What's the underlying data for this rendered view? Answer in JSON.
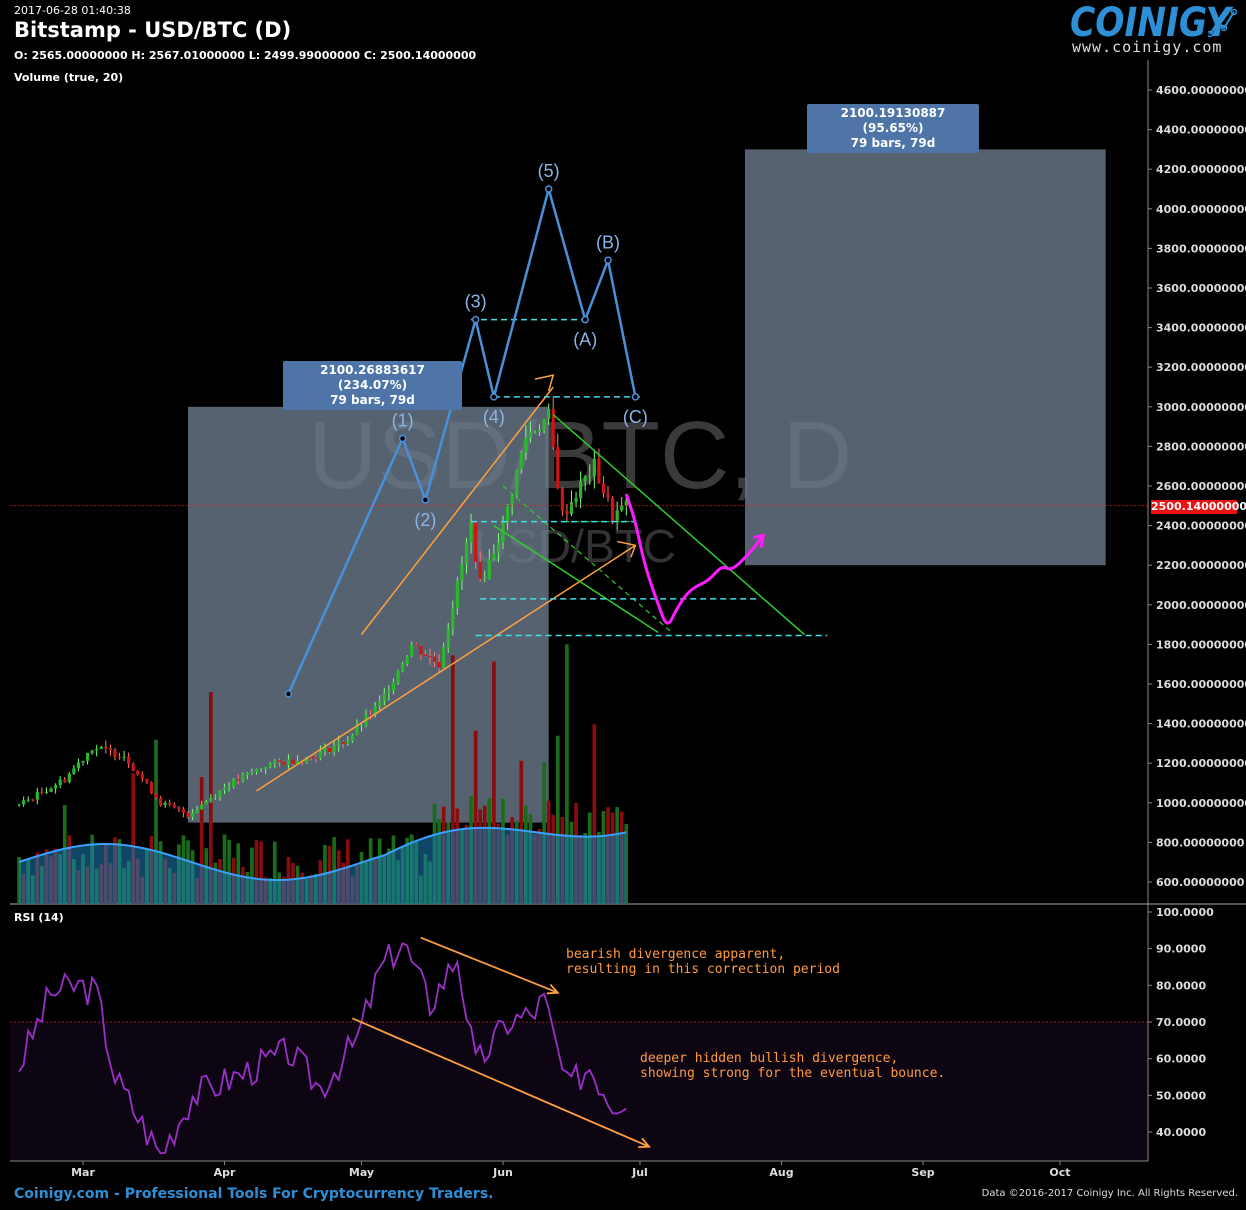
{
  "header": {
    "timestamp": "2017-06-28 01:40:38",
    "title": "Bitstamp - USD/BTC (D)",
    "ohlc": "O: 2565.00000000 H: 2567.01000000 L: 2499.99000000 C: 2500.14000000",
    "volume_label": "Volume (true, 20)"
  },
  "brand": {
    "name": "COINIGY",
    "url": "www.coinigy.com",
    "accent": "#2e8fd6"
  },
  "watermark": {
    "main": "USD/BTC, D",
    "sub": "USD/BTC"
  },
  "rsi_label": "RSI (14)",
  "footer": {
    "left": "Coinigy.com - Professional Tools For Cryptocurrency Traders.",
    "right": "Data ©2016-2017 Coinigy Inc. All Rights Reserved."
  },
  "annotations": {
    "measure_1": {
      "line1": "2100.26883617 (234.07%)",
      "line2": "79 bars, 79d"
    },
    "measure_2": {
      "line1": "2100.19130887 (95.65%)",
      "line2": "79 bars, 79d"
    },
    "note_bearish": "bearish divergence apparent,\nresulting in this correction period",
    "note_bullish": "deeper hidden bullish divergence,\nshowing strong for the eventual bounce.",
    "wave_labels": [
      "(1)",
      "(2)",
      "(3)",
      "(4)",
      "(5)",
      "(A)",
      "(B)",
      "(C)"
    ]
  },
  "chart_data": {
    "type": "candlestick",
    "price_axis_ticks": [
      "4600.00000000",
      "4400.00000000",
      "4200.00000000",
      "4000.00000000",
      "3800.00000000",
      "3600.00000000",
      "3400.00000000",
      "3200.00000000",
      "3000.00000000",
      "2800.00000000",
      "2600.00000000",
      "2400.00000000",
      "2200.00000000",
      "2000.00000000",
      "1800.00000000",
      "1600.00000000",
      "1400.00000000",
      "1200.00000000",
      "1000.00000000",
      "800.00000000",
      "600.00000000"
    ],
    "rsi_axis_ticks": [
      "100.0000",
      "90.0000",
      "80.0000",
      "70.0000",
      "60.0000",
      "50.0000",
      "40.0000"
    ],
    "time_axis_ticks": [
      "Mar",
      "Apr",
      "May",
      "Jun",
      "Jul",
      "Aug",
      "Sep",
      "Oct"
    ],
    "last_price_label": "2500.14000000",
    "last_price": 2500.14,
    "open": 2565.0,
    "high": 2567.01,
    "low": 2499.99,
    "close": 2500.14,
    "rsi_overbought": 70,
    "price_range": [
      500,
      4700
    ],
    "rsi_range": [
      30,
      100
    ],
    "price_keypoints": [
      [
        "2017-02-15",
        990
      ],
      [
        "2017-02-25",
        1120
      ],
      [
        "2017-03-03",
        1280
      ],
      [
        "2017-03-10",
        1240
      ],
      [
        "2017-03-18",
        1000
      ],
      [
        "2017-03-24",
        940
      ],
      [
        "2017-04-01",
        1080
      ],
      [
        "2017-04-10",
        1190
      ],
      [
        "2017-04-20",
        1230
      ],
      [
        "2017-04-28",
        1320
      ],
      [
        "2017-05-05",
        1500
      ],
      [
        "2017-05-12",
        1800
      ],
      [
        "2017-05-18",
        1700
      ],
      [
        "2017-05-25",
        2400
      ],
      [
        "2017-05-27",
        2100
      ],
      [
        "2017-06-01",
        2400
      ],
      [
        "2017-06-06",
        2850
      ],
      [
        "2017-06-11",
        2950
      ],
      [
        "2017-06-14",
        2450
      ],
      [
        "2017-06-18",
        2600
      ],
      [
        "2017-06-21",
        2700
      ],
      [
        "2017-06-25",
        2450
      ],
      [
        "2017-06-28",
        2500
      ]
    ],
    "rsi_keypoints": [
      [
        "2017-02-15",
        58
      ],
      [
        "2017-02-22",
        78
      ],
      [
        "2017-02-28",
        80
      ],
      [
        "2017-03-04",
        78
      ],
      [
        "2017-03-08",
        55
      ],
      [
        "2017-03-15",
        40
      ],
      [
        "2017-03-18",
        34
      ],
      [
        "2017-03-25",
        50
      ],
      [
        "2017-04-05",
        56
      ],
      [
        "2017-04-15",
        62
      ],
      [
        "2017-04-22",
        52
      ],
      [
        "2017-04-30",
        65
      ],
      [
        "2017-05-05",
        84
      ],
      [
        "2017-05-10",
        92
      ],
      [
        "2017-05-16",
        75
      ],
      [
        "2017-05-22",
        88
      ],
      [
        "2017-05-26",
        58
      ],
      [
        "2017-06-02",
        70
      ],
      [
        "2017-06-07",
        72
      ],
      [
        "2017-06-10",
        76
      ],
      [
        "2017-06-15",
        52
      ],
      [
        "2017-06-20",
        58
      ],
      [
        "2017-06-25",
        48
      ],
      [
        "2017-06-28",
        50
      ]
    ],
    "series": [
      {
        "name": "Volume (true, 20)"
      },
      {
        "name": "RSI (14)"
      }
    ],
    "elliott_waves": [
      {
        "label": "(1)",
        "date": "2017-05-10",
        "price": 2840
      },
      {
        "label": "(2)",
        "date": "2017-05-15",
        "price": 2530
      },
      {
        "label": "(3)",
        "date": "2017-05-26",
        "price": 3440
      },
      {
        "label": "(4)",
        "date": "2017-05-30",
        "price": 3050
      },
      {
        "label": "(5)",
        "date": "2017-06-11",
        "price": 4100
      },
      {
        "label": "(A)",
        "date": "2017-06-19",
        "price": 3440
      },
      {
        "label": "(B)",
        "date": "2017-06-24",
        "price": 3740
      },
      {
        "label": "(C)",
        "date": "2017-06-30",
        "price": 3050
      }
    ],
    "colors": {
      "up": "#2bb72b",
      "down": "#d01414",
      "wave": "#4a90d9",
      "channel": "#2ecc2e",
      "support": "#3fe0e8",
      "projection": "#ff1aff",
      "trendline": "#ffa040",
      "rsi": "#9b30c8",
      "box": "#6f7d8f",
      "last_price": "#e11"
    }
  }
}
